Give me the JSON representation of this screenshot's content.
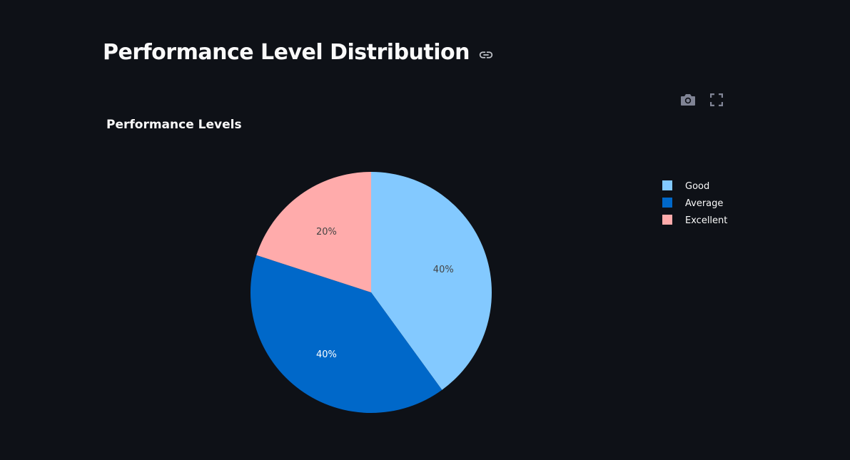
{
  "page": {
    "title": "Performance Level Distribution"
  },
  "toolbar": {
    "screenshot_icon": "camera-icon",
    "fullscreen_icon": "fullscreen-icon",
    "link_icon": "link-icon"
  },
  "colors": {
    "background": "#0e1117",
    "text": "#fafafa",
    "icon": "#808495"
  },
  "chart_data": {
    "type": "pie",
    "title": "Performance Levels",
    "categories": [
      "Good",
      "Average",
      "Excellent"
    ],
    "values": [
      40,
      40,
      20
    ],
    "labels": [
      "40%",
      "40%",
      "20%"
    ],
    "colors": [
      "#83c9ff",
      "#0068c9",
      "#ffabab"
    ],
    "label_colors": [
      "#444444",
      "#ffffff",
      "#444444"
    ],
    "legend_position": "right",
    "direction": "clockwise",
    "start_angle": "top"
  }
}
